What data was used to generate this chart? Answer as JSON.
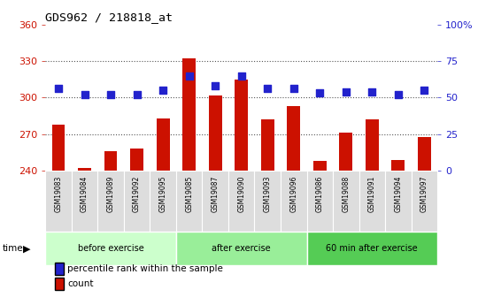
{
  "title": "GDS962 / 218818_at",
  "samples": [
    "GSM19083",
    "GSM19084",
    "GSM19089",
    "GSM19092",
    "GSM19095",
    "GSM19085",
    "GSM19087",
    "GSM19090",
    "GSM19093",
    "GSM19096",
    "GSM19086",
    "GSM19088",
    "GSM19091",
    "GSM19094",
    "GSM19097"
  ],
  "counts": [
    278,
    242,
    256,
    258,
    283,
    332,
    302,
    315,
    282,
    293,
    248,
    271,
    282,
    249,
    268
  ],
  "percentiles": [
    56,
    52,
    52,
    52,
    55,
    65,
    58,
    65,
    56,
    56,
    53,
    54,
    54,
    52,
    55
  ],
  "groups": [
    {
      "label": "before exercise",
      "start": 0,
      "end": 5,
      "color": "#ccffcc"
    },
    {
      "label": "after exercise",
      "start": 5,
      "end": 10,
      "color": "#99ee99"
    },
    {
      "label": "60 min after exercise",
      "start": 10,
      "end": 15,
      "color": "#55cc55"
    }
  ],
  "ylim_left": [
    240,
    360
  ],
  "ylim_right": [
    0,
    100
  ],
  "yticks_left": [
    240,
    270,
    300,
    330,
    360
  ],
  "yticks_right": [
    0,
    25,
    50,
    75,
    100
  ],
  "bar_color": "#cc1100",
  "dot_color": "#2222cc",
  "background_color": "#ffffff",
  "plot_bg_color": "#ffffff",
  "xtick_bg_color": "#dddddd",
  "grid_color": "#555555",
  "left_tick_color": "#cc1100",
  "right_tick_color": "#2222cc",
  "bar_width": 0.5,
  "dot_size": 40
}
